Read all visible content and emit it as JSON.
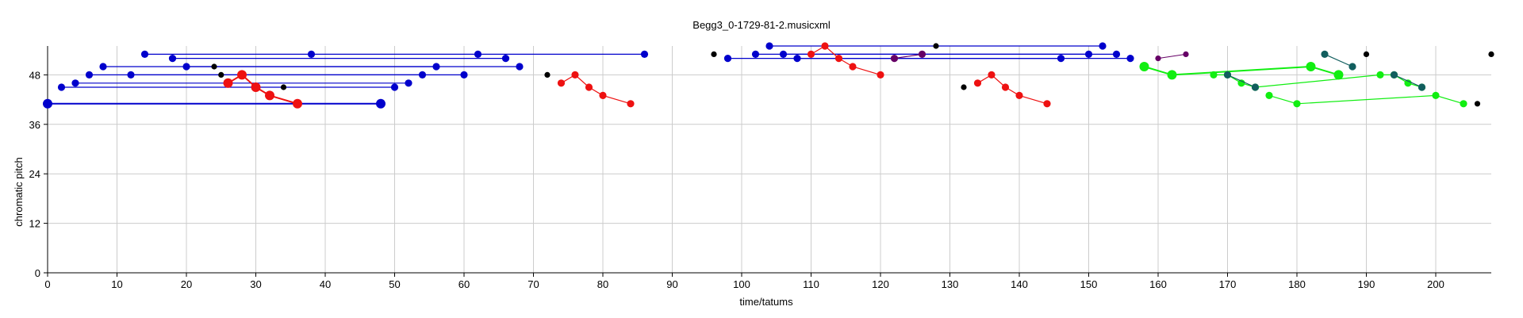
{
  "chart_data": {
    "type": "scatter",
    "title": "Begg3_0-1729-81-2.musicxml",
    "xlabel": "time/tatums",
    "ylabel": "chromatic pitch",
    "xlim": [
      0,
      208
    ],
    "ylim": [
      0,
      55
    ],
    "xticks": [
      0,
      10,
      20,
      30,
      40,
      50,
      60,
      70,
      80,
      90,
      100,
      110,
      120,
      130,
      140,
      150,
      160,
      170,
      180,
      190,
      200
    ],
    "yticks": [
      0,
      12,
      24,
      36,
      48
    ],
    "grid": true,
    "colors": {
      "blue": "#0000cc",
      "red": "#ee1111",
      "black": "#000000",
      "green": "#11ee11",
      "teal": "#115e5e",
      "purple": "#660066"
    },
    "segments": [
      {
        "color": "blue",
        "size": "large",
        "points": [
          [
            0,
            41
          ],
          [
            48,
            41
          ]
        ]
      },
      {
        "color": "blue",
        "size": "medium",
        "points": [
          [
            2,
            45
          ],
          [
            50,
            45
          ]
        ]
      },
      {
        "color": "blue",
        "size": "medium",
        "points": [
          [
            4,
            46
          ],
          [
            52,
            46
          ]
        ]
      },
      {
        "color": "blue",
        "size": "medium",
        "points": [
          [
            6,
            48
          ],
          [
            54,
            48
          ]
        ]
      },
      {
        "color": "blue",
        "size": "medium",
        "points": [
          [
            8,
            50
          ],
          [
            56,
            50
          ]
        ]
      },
      {
        "color": "blue",
        "size": "medium",
        "points": [
          [
            12,
            48
          ],
          [
            60,
            48
          ]
        ]
      },
      {
        "color": "blue",
        "size": "medium",
        "points": [
          [
            14,
            53
          ],
          [
            38,
            53
          ],
          [
            62,
            53
          ],
          [
            86,
            53
          ]
        ]
      },
      {
        "color": "blue",
        "size": "medium",
        "points": [
          [
            18,
            52
          ],
          [
            66,
            52
          ]
        ]
      },
      {
        "color": "blue",
        "size": "medium",
        "points": [
          [
            20,
            50
          ],
          [
            68,
            50
          ]
        ]
      },
      {
        "color": "red",
        "size": "large",
        "points": [
          [
            26,
            46
          ],
          [
            28,
            48
          ],
          [
            30,
            45
          ],
          [
            32,
            43
          ],
          [
            36,
            41
          ]
        ]
      },
      {
        "color": "red",
        "size": "medium",
        "points": [
          [
            74,
            46
          ],
          [
            76,
            48
          ],
          [
            78,
            45
          ],
          [
            80,
            43
          ],
          [
            84,
            41
          ]
        ]
      },
      {
        "color": "blue",
        "size": "medium",
        "points": [
          [
            98,
            52
          ],
          [
            146,
            52
          ]
        ]
      },
      {
        "color": "blue",
        "size": "medium",
        "points": [
          [
            102,
            53
          ],
          [
            150,
            53
          ]
        ]
      },
      {
        "color": "blue",
        "size": "medium",
        "points": [
          [
            104,
            55
          ],
          [
            152,
            55
          ]
        ]
      },
      {
        "color": "blue",
        "size": "medium",
        "points": [
          [
            106,
            53
          ],
          [
            154,
            53
          ]
        ]
      },
      {
        "color": "blue",
        "size": "medium",
        "points": [
          [
            108,
            52
          ],
          [
            156,
            52
          ]
        ]
      },
      {
        "color": "red",
        "size": "medium",
        "points": [
          [
            110,
            53
          ],
          [
            112,
            55
          ],
          [
            114,
            52
          ],
          [
            116,
            50
          ],
          [
            120,
            48
          ]
        ]
      },
      {
        "color": "purple",
        "size": "medium",
        "points": [
          [
            122,
            52
          ],
          [
            126,
            53
          ]
        ]
      },
      {
        "color": "red",
        "size": "medium",
        "points": [
          [
            134,
            46
          ],
          [
            136,
            48
          ],
          [
            138,
            45
          ],
          [
            140,
            43
          ],
          [
            144,
            41
          ]
        ]
      },
      {
        "color": "purple",
        "size": "small",
        "points": [
          [
            160,
            52
          ],
          [
            164,
            53
          ]
        ]
      },
      {
        "color": "green",
        "size": "large",
        "points": [
          [
            158,
            50
          ],
          [
            162,
            48
          ],
          [
            182,
            50
          ],
          [
            186,
            48
          ]
        ]
      },
      {
        "color": "green",
        "size": "medium",
        "points": [
          [
            168,
            48
          ],
          [
            170,
            48
          ],
          [
            172,
            46
          ],
          [
            174,
            45
          ],
          [
            192,
            48
          ],
          [
            194,
            48
          ],
          [
            196,
            46
          ],
          [
            198,
            45
          ]
        ]
      },
      {
        "color": "green",
        "size": "medium",
        "points": [
          [
            176,
            43
          ],
          [
            180,
            41
          ],
          [
            200,
            43
          ],
          [
            204,
            41
          ]
        ]
      },
      {
        "color": "teal",
        "size": "medium",
        "points": [
          [
            170,
            48
          ],
          [
            174,
            45
          ]
        ]
      },
      {
        "color": "teal",
        "size": "medium",
        "points": [
          [
            184,
            53
          ],
          [
            188,
            50
          ]
        ]
      },
      {
        "color": "teal",
        "size": "medium",
        "points": [
          [
            194,
            48
          ],
          [
            198,
            45
          ]
        ]
      }
    ],
    "markers": [
      {
        "color": "black",
        "points": [
          [
            24,
            50
          ],
          [
            25,
            48
          ],
          [
            34,
            45
          ],
          [
            72,
            48
          ],
          [
            96,
            53
          ],
          [
            128,
            55
          ],
          [
            132,
            45
          ],
          [
            190,
            53
          ],
          [
            206,
            41
          ],
          [
            208,
            53
          ]
        ]
      }
    ]
  }
}
